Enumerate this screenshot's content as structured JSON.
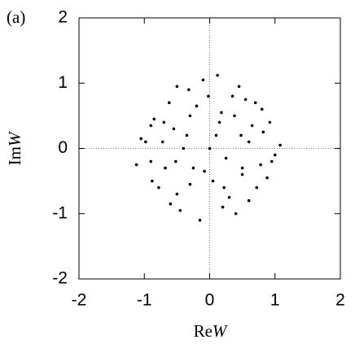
{
  "chart_data": {
    "type": "scatter",
    "panel_label": "(a)",
    "xlabel": [
      "Re",
      "W"
    ],
    "ylabel": [
      "Im",
      "W"
    ],
    "xlim": [
      -2,
      2
    ],
    "ylim": [
      -2,
      2
    ],
    "xticks": [
      -2,
      -1,
      0,
      1,
      2
    ],
    "yticks": [
      -2,
      -1,
      0,
      1,
      2
    ],
    "color": "#000000",
    "x": [
      0.1,
      -0.3,
      0.5,
      -0.7,
      0.8,
      -0.9,
      0.2,
      -0.1,
      0.6,
      -0.5,
      0.95,
      -1.05,
      0.35,
      -0.25,
      0.72,
      -0.62,
      0.05,
      -0.85,
      1.08,
      -1.12,
      0.45,
      -0.4,
      0.15,
      -0.15,
      0.88,
      -0.78,
      0.55,
      -0.55,
      0.3,
      -0.32,
      0.0,
      0.65,
      -0.68,
      0.25,
      -0.2,
      0.82,
      -0.9,
      0.4,
      -0.45,
      1.0,
      -0.98,
      0.12,
      -0.08,
      0.7,
      -0.72,
      0.5,
      -0.52,
      0.18,
      -0.35,
      0.92,
      -0.6,
      0.38,
      -0.02,
      0.78,
      -0.88,
      0.6,
      -0.3,
      0.22,
      -0.5,
      0.48
    ],
    "y": [
      0.2,
      0.5,
      -0.3,
      0.4,
      0.6,
      -0.2,
      -0.9,
      1.05,
      0.1,
      -0.7,
      -0.2,
      0.15,
      0.8,
      -0.3,
      -0.6,
      0.7,
      -0.5,
      0.45,
      0.05,
      -0.25,
      0.95,
      0.0,
      0.4,
      -1.1,
      -0.45,
      -0.6,
      0.75,
      0.3,
      -0.75,
      0.9,
      0.0,
      0.35,
      -0.3,
      -0.15,
      0.65,
      0.25,
      0.35,
      -1.0,
      -0.95,
      -0.1,
      0.1,
      1.12,
      -0.35,
      0.7,
      0.1,
      -0.4,
      -0.2,
      0.55,
      0.2,
      0.4,
      -0.85,
      0.5,
      0.8,
      -0.25,
      -0.5,
      -0.8,
      -0.55,
      -0.6,
      0.95,
      0.2
    ]
  }
}
